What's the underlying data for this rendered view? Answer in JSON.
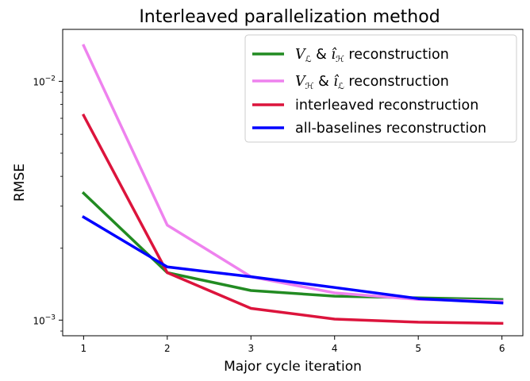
{
  "chart_data": {
    "type": "line",
    "title": "Interleaved parallelization method",
    "xlabel": "Major cycle iteration",
    "ylabel": "RMSE",
    "yscale": "log",
    "xlim": [
      0.75,
      6.25
    ],
    "ylim": [
      0.00086,
      0.0165
    ],
    "x": [
      1,
      2,
      3,
      4,
      5,
      6
    ],
    "x_ticks": [
      "1",
      "2",
      "3",
      "4",
      "5",
      "6"
    ],
    "y_ticks": [
      {
        "value": 0.01,
        "base": "10",
        "exp": "−2"
      },
      {
        "value": 0.001,
        "base": "10",
        "exp": "−3"
      }
    ],
    "legend_position": "upper right",
    "grid": false,
    "series": [
      {
        "name": "V_L & î_H reconstruction",
        "legend": {
          "v": "V",
          "vsub": "ℒ",
          "amp": " & ",
          "i": "î",
          "isub": "ℋ",
          "rest": " reconstruction"
        },
        "color": "#228B22",
        "values": [
          0.0034,
          0.00158,
          0.00133,
          0.00126,
          0.00124,
          0.00122
        ]
      },
      {
        "name": "V_H & î_L reconstruction",
        "legend": {
          "v": "V",
          "vsub": "ℋ",
          "amp": " & ",
          "i": "î",
          "isub": "ℒ",
          "rest": " reconstruction"
        },
        "color": "#EE82EE",
        "values": [
          0.0141,
          0.0025,
          0.00152,
          0.0013,
          0.00122,
          0.0012
        ]
      },
      {
        "name": "interleaved reconstruction",
        "color": "#DC143C",
        "values": [
          0.0072,
          0.00158,
          0.00112,
          0.00101,
          0.00098,
          0.00097
        ]
      },
      {
        "name": "all-baselines reconstruction",
        "color": "#0000FF",
        "values": [
          0.0027,
          0.00167,
          0.00152,
          0.00137,
          0.00123,
          0.00118
        ]
      }
    ]
  }
}
